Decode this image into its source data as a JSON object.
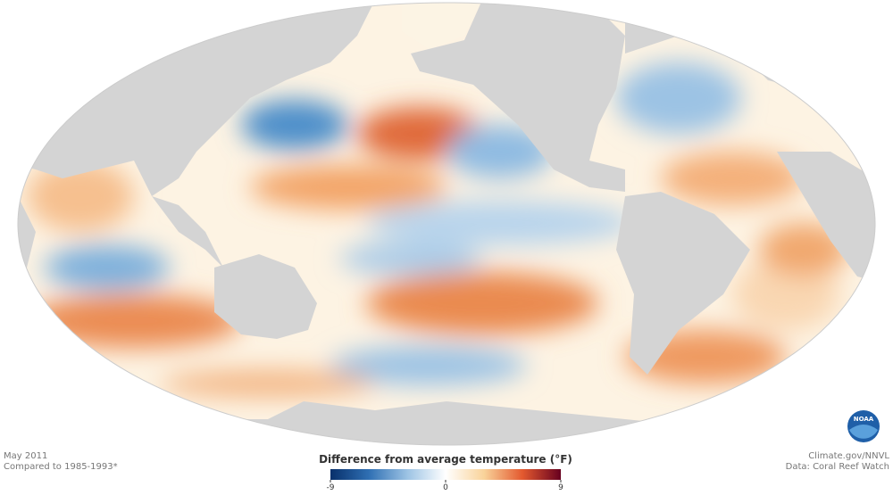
{
  "header": {
    "date": "May 2011",
    "baseline": "Compared to 1985-1993*"
  },
  "colorbar": {
    "title": "Difference from average temperature (°F)",
    "lim": [
      -9,
      9
    ],
    "ticks": [
      -9,
      0,
      9
    ],
    "colors": [
      "#08306b",
      "#2f6fb3",
      "#9cc3e4",
      "#ffffff",
      "#f9d39a",
      "#e3592f",
      "#67001f"
    ]
  },
  "credits": {
    "source": "Climate.gov/NNVL",
    "data": "Data: Coral Reef Watch"
  },
  "logo": {
    "text": "NOAA"
  }
}
